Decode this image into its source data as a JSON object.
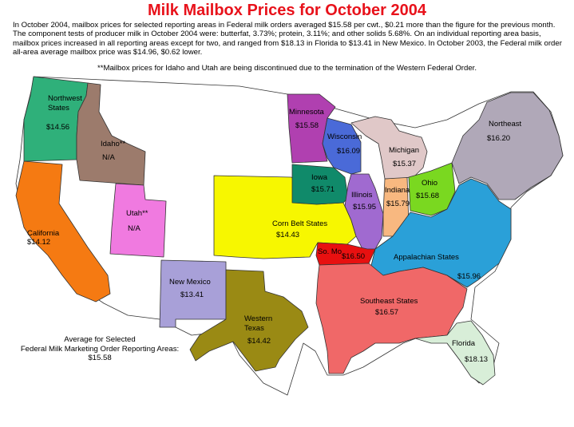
{
  "title": "Milk Mailbox Prices for October 2004",
  "intro": "In October 2004, mailbox prices for selected reporting areas in Federal milk orders averaged $15.58 per cwt., $0.21 more than the figure for the previous month. The component tests of producer milk in October 2004 were: butterfat, 3.73%; protein, 3.11%; and other solids 5.68%. On an individual reporting area basis, mailbox prices increased in all reporting areas except for two, and ranged from $18.13 in Florida to $13.41 in New Mexico.  In October 2003, the Federal milk order all-area average mailbox price was $14.96, $0.62 lower.",
  "note": "**Mailbox prices for Idaho and Utah are being discontinued due to the termination of the Western Federal Order.",
  "average": {
    "line1": "Average for Selected",
    "line2": "Federal Milk Marketing Order Reporting Areas:",
    "value": "$15.58"
  },
  "colors": {
    "title": "#e8121b",
    "northwest": "#2fb07a",
    "idaho": "#9c7b6c",
    "california": "#f57a12",
    "utah": "#f07ae0",
    "new_mexico": "#a8a0d8",
    "western_texas": "#9a8a14",
    "corn_belt": "#f7f700",
    "minnesota": "#b040b0",
    "wisconsin": "#4a6ad8",
    "iowa": "#108a6a",
    "illinois": "#a06ad0",
    "indiana": "#f8b880",
    "michigan": "#e0c8c8",
    "ohio": "#7ad820",
    "northeast": "#b0a8b8",
    "appalachian": "#2aa0d8",
    "southeast": "#f06868",
    "florida": "#d8eed8",
    "mo": "#e81010"
  },
  "regions": {
    "northwest": {
      "name_line1": "Northwest",
      "name_line2": "States",
      "price": "$14.56"
    },
    "idaho": {
      "name": "Idaho**",
      "price": "N/A"
    },
    "california": {
      "name": "California",
      "price": "$14.12"
    },
    "utah": {
      "name": "Utah**",
      "price": "N/A"
    },
    "new_mexico": {
      "name": "New Mexico",
      "price": "$13.41"
    },
    "western_texas": {
      "name_line1": "Western",
      "name_line2": "Texas",
      "price": "$14.42"
    },
    "corn_belt": {
      "name": "Corn Belt States",
      "price": "$14.43"
    },
    "minnesota": {
      "name": "Minnesota",
      "price": "$15.58"
    },
    "wisconsin": {
      "name": "Wisconsin",
      "price": "$16.09"
    },
    "iowa": {
      "name": "Iowa",
      "price": "$15.71"
    },
    "illinois": {
      "name": "Illinois",
      "price": "$15.95"
    },
    "indiana": {
      "name": "Indiana",
      "price": "$15.79"
    },
    "michigan": {
      "name": "Michigan",
      "price": "$15.37"
    },
    "ohio": {
      "name": "Ohio",
      "price": "$15.68"
    },
    "northeast": {
      "name": "Northeast",
      "price": "$16.20"
    },
    "appalachian": {
      "name": "Appalachian States",
      "price": "$15.96"
    },
    "southeast": {
      "name": "Southeast States",
      "price": "$16.57"
    },
    "florida": {
      "name": "Florida",
      "price": "$18.13"
    },
    "mo": {
      "name": "So. Mo",
      "price": "$16.50"
    }
  }
}
